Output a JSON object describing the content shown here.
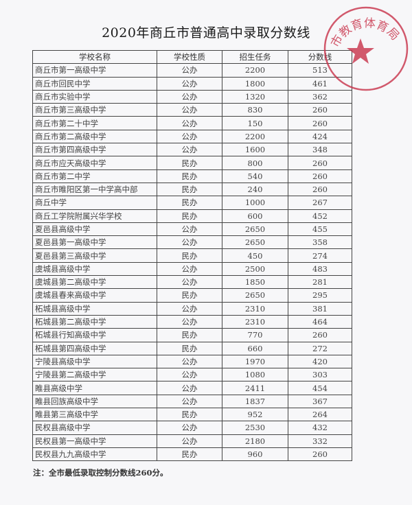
{
  "title": "2020年商丘市普通高中录取分数线",
  "table": {
    "headers": [
      "学校名称",
      "学校性质",
      "招生任务",
      "分数线"
    ],
    "rows": [
      [
        "商丘市第一高级中学",
        "公办",
        "2200",
        "513"
      ],
      [
        "商丘市回民中学",
        "公办",
        "1800",
        "461"
      ],
      [
        "商丘市实验中学",
        "公办",
        "1320",
        "362"
      ],
      [
        "商丘市第三高级中学",
        "公办",
        "830",
        "260"
      ],
      [
        "商丘市第二十中学",
        "公办",
        "150",
        "260"
      ],
      [
        "商丘市第二高级中学",
        "公办",
        "2200",
        "424"
      ],
      [
        "商丘市第四高级中学",
        "公办",
        "1600",
        "348"
      ],
      [
        "商丘市应天高级中学",
        "民办",
        "800",
        "260"
      ],
      [
        "商丘市第二中学",
        "民办",
        "540",
        "260"
      ],
      [
        "商丘市睢阳区第一中学高中部",
        "民办",
        "240",
        "260"
      ],
      [
        "商丘中学",
        "民办",
        "1000",
        "267"
      ],
      [
        "商丘工学院附属兴华学校",
        "民办",
        "600",
        "452"
      ],
      [
        "夏邑县高级中学",
        "公办",
        "2650",
        "455"
      ],
      [
        "夏邑县第一高级中学",
        "公办",
        "2650",
        "358"
      ],
      [
        "夏邑县第三高级中学",
        "民办",
        "450",
        "274"
      ],
      [
        "虞城县高级中学",
        "公办",
        "2500",
        "483"
      ],
      [
        "虞城县第二高级中学",
        "公办",
        "1850",
        "281"
      ],
      [
        "虞城县春来高级中学",
        "民办",
        "2650",
        "295"
      ],
      [
        "柘城县高级中学",
        "公办",
        "2310",
        "381"
      ],
      [
        "柘城县第二高级中学",
        "公办",
        "2310",
        "464"
      ],
      [
        "柘城县行知高级中学",
        "民办",
        "770",
        "260"
      ],
      [
        "柘城县第四高级中学",
        "民办",
        "660",
        "272"
      ],
      [
        "宁陵县高级中学",
        "公办",
        "1970",
        "420"
      ],
      [
        "宁陵县第二高级中学",
        "公办",
        "1080",
        "303"
      ],
      [
        "睢县高级中学",
        "公办",
        "2411",
        "454"
      ],
      [
        "睢县回族高级中学",
        "公办",
        "1837",
        "367"
      ],
      [
        "睢县第三高级中学",
        "民办",
        "952",
        "264"
      ],
      [
        "民权县高级中学",
        "公办",
        "2530",
        "432"
      ],
      [
        "民权县第一高级中学",
        "公办",
        "2180",
        "332"
      ],
      [
        "民权县九九高级中学",
        "民办",
        "960",
        "260"
      ]
    ]
  },
  "note": "注：全市最低录取控制分数线260分。",
  "stamp": {
    "text": "市教育体育局",
    "color": "#c8324a"
  }
}
